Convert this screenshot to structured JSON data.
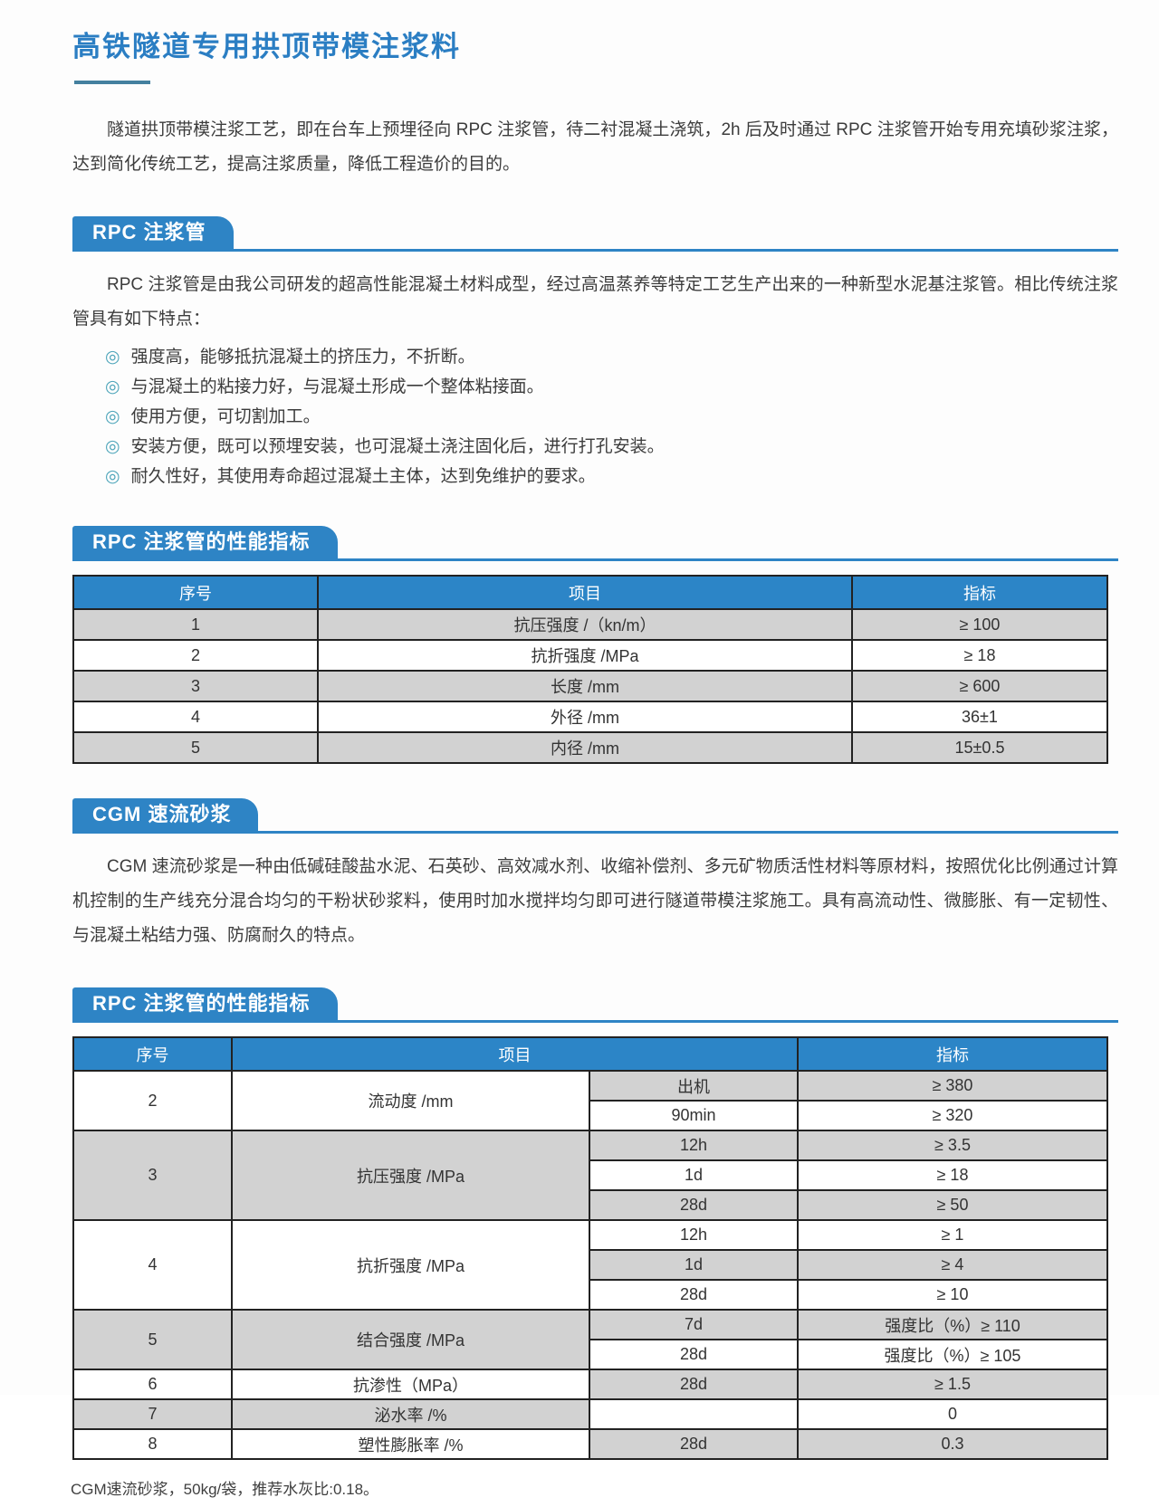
{
  "page": {
    "title": "高铁隧道专用拱顶带模注浆料",
    "intro": "隧道拱顶带模注浆工艺，即在台车上预埋径向 RPC 注浆管，待二衬混凝土浇筑，2h 后及时通过 RPC 注浆管开始专用充填砂浆注浆，达到简化传统工艺，提高注浆质量，降低工程造价的目的。",
    "footnote": "CGM速流砂浆，50kg/袋，推荐水灰比:0.18。"
  },
  "colors": {
    "accent_blue": "#2e84c5",
    "title_blue": "#2b7ec3",
    "row_gray": "#d2d2d2",
    "bullet_teal": "#4ba4b9"
  },
  "sections": {
    "rpc_pipe": {
      "heading": "RPC 注浆管",
      "intro": "RPC 注浆管是由我公司研发的超高性能混凝土材料成型，经过高温蒸养等特定工艺生产出来的一种新型水泥基注浆管。相比传统注浆管具有如下特点：",
      "bullet_glyph": "◎",
      "bullets": [
        "强度高，能够抵抗混凝土的挤压力，不折断。",
        "与混凝土的粘接力好，与混凝土形成一个整体粘接面。",
        "使用方便，可切割加工。",
        "安装方便，既可以预埋安装，也可混凝土浇注固化后，进行打孔安装。",
        "耐久性好，其使用寿命超过混凝土主体，达到免维护的要求。"
      ]
    },
    "rpc_table": {
      "heading": "RPC 注浆管的性能指标",
      "headers": [
        "序号",
        "项目",
        "指标"
      ],
      "rows": [
        [
          "1",
          "抗压强度 /（kn/m）",
          "≥ 100"
        ],
        [
          "2",
          "抗折强度 /MPa",
          "≥ 18"
        ],
        [
          "3",
          "长度 /mm",
          "≥ 600"
        ],
        [
          "4",
          "外径 /mm",
          "36±1"
        ],
        [
          "5",
          "内径 /mm",
          "15±0.5"
        ]
      ]
    },
    "cgm": {
      "heading": "CGM 速流砂浆",
      "intro": "CGM 速流砂浆是一种由低碱硅酸盐水泥、石英砂、高效减水剂、收缩补偿剂、多元矿物质活性材料等原材料，按照优化比例通过计算机控制的生产线充分混合均匀的干粉状砂浆料，使用时加水搅拌均匀即可进行隧道带模注浆施工。具有高流动性、微膨胀、有一定韧性、与混凝土粘结力强、防腐耐久的特点。"
    },
    "cgm_table": {
      "heading": "RPC 注浆管的性能指标",
      "headers": [
        "序号",
        "项目",
        "指标"
      ],
      "groups": [
        {
          "no": "2",
          "item": "流动度 /mm",
          "subs": [
            {
              "time": "出机",
              "value": "≥ 380"
            },
            {
              "time": "90min",
              "value": "≥ 320"
            }
          ]
        },
        {
          "no": "3",
          "item": "抗压强度 /MPa",
          "subs": [
            {
              "time": "12h",
              "value": "≥ 3.5"
            },
            {
              "time": "1d",
              "value": "≥ 18"
            },
            {
              "time": "28d",
              "value": "≥ 50"
            }
          ]
        },
        {
          "no": "4",
          "item": "抗折强度 /MPa",
          "subs": [
            {
              "time": "12h",
              "value": "≥ 1"
            },
            {
              "time": "1d",
              "value": "≥ 4"
            },
            {
              "time": "28d",
              "value": "≥ 10"
            }
          ]
        },
        {
          "no": "5",
          "item": "结合强度 /MPa",
          "subs": [
            {
              "time": "7d",
              "value": "强度比（%）≥ 110"
            },
            {
              "time": "28d",
              "value": "强度比（%）≥ 105"
            }
          ]
        },
        {
          "no": "6",
          "item": "抗渗性（MPa）",
          "subs": [
            {
              "time": "28d",
              "value": "≥ 1.5"
            }
          ]
        },
        {
          "no": "7",
          "item": "泌水率 /%",
          "subs": [
            {
              "time": "",
              "value": "0"
            }
          ]
        },
        {
          "no": "8",
          "item": "塑性膨胀率 /%",
          "subs": [
            {
              "time": "28d",
              "value": "0.3"
            }
          ]
        }
      ]
    }
  }
}
